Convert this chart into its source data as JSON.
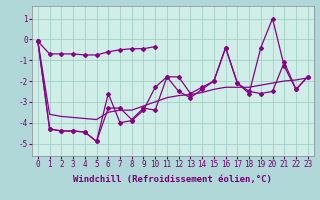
{
  "background_color": "#b0d8d8",
  "plot_bg_color": "#d0eee8",
  "line_color": "#880088",
  "grid_color": "#99ccbb",
  "xlabel": "Windchill (Refroidissement éolien,°C)",
  "xlabel_fontsize": 6.5,
  "tick_fontsize": 5.5,
  "ylim": [
    -5.6,
    1.6
  ],
  "xlim": [
    -0.5,
    23.5
  ],
  "yticks": [
    -5,
    -4,
    -3,
    -2,
    -1,
    0,
    1
  ],
  "xticks": [
    0,
    1,
    2,
    3,
    4,
    5,
    6,
    7,
    8,
    9,
    10,
    11,
    12,
    13,
    14,
    15,
    16,
    17,
    18,
    19,
    20,
    21,
    22,
    23
  ],
  "series1_x": [
    0,
    1,
    2,
    3,
    4,
    5,
    6,
    7,
    8,
    9,
    10
  ],
  "series1_y": [
    -0.1,
    -0.7,
    -0.7,
    -0.7,
    -0.75,
    -0.75,
    -0.6,
    -0.5,
    -0.45,
    -0.45,
    -0.35
  ],
  "series2_x": [
    0,
    1,
    2,
    3,
    4,
    5,
    6,
    7,
    8,
    9,
    10,
    11,
    12,
    13,
    14,
    15,
    16,
    17,
    18,
    19,
    20,
    21,
    22,
    23
  ],
  "series2_y": [
    -0.1,
    -4.3,
    -4.4,
    -4.4,
    -4.45,
    -4.9,
    -2.6,
    -4.0,
    -3.9,
    -3.4,
    -2.3,
    -1.8,
    -2.5,
    -2.8,
    -2.4,
    -2.0,
    -0.4,
    -2.1,
    -2.5,
    -2.6,
    -2.5,
    -1.1,
    -2.4,
    -1.8
  ],
  "series3_x": [
    0,
    1,
    2,
    3,
    4,
    5,
    6,
    7,
    8,
    9,
    10,
    11,
    12,
    13,
    14,
    15,
    16,
    17,
    18,
    19,
    20,
    21,
    22,
    23
  ],
  "series3_y": [
    -0.1,
    -4.3,
    -4.4,
    -4.4,
    -4.45,
    -4.9,
    -3.3,
    -3.3,
    -3.85,
    -3.3,
    -3.4,
    -1.8,
    -1.8,
    -2.6,
    -2.3,
    -2.0,
    -0.4,
    -2.1,
    -2.6,
    -0.4,
    1.0,
    -1.3,
    -2.4,
    -1.8
  ],
  "series4_x": [
    0,
    1,
    2,
    3,
    4,
    5,
    6,
    7,
    8,
    9,
    10,
    11,
    12,
    13,
    14,
    15,
    16,
    17,
    18,
    19,
    20,
    21,
    22,
    23
  ],
  "series4_y": [
    -0.1,
    -3.6,
    -3.7,
    -3.75,
    -3.8,
    -3.85,
    -3.5,
    -3.4,
    -3.4,
    -3.2,
    -3.0,
    -2.8,
    -2.7,
    -2.65,
    -2.55,
    -2.4,
    -2.3,
    -2.3,
    -2.3,
    -2.2,
    -2.1,
    -2.0,
    -1.95,
    -1.85
  ]
}
